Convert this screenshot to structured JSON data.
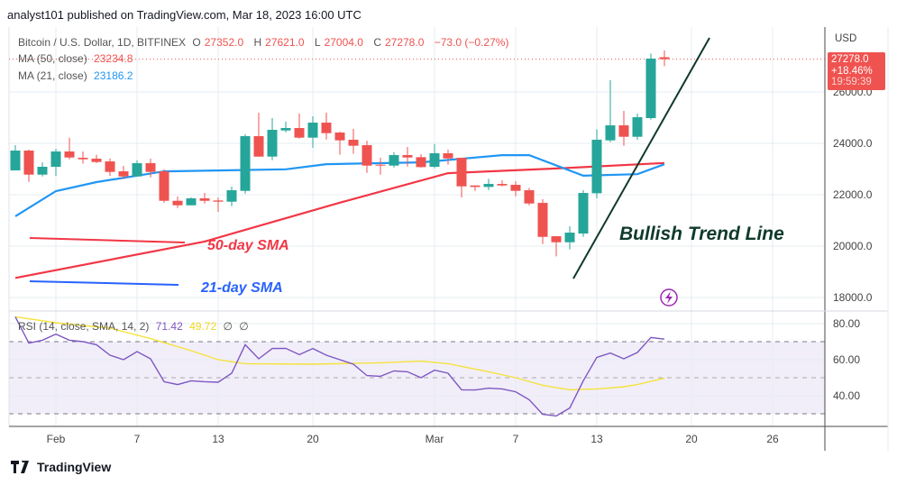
{
  "header": {
    "published": "analyst101 published on TradingView.com, Mar 18, 2023 16:00 UTC"
  },
  "footer": {
    "logo_text": "TradingView"
  },
  "legend": {
    "symbol": "Bitcoin / U.S. Dollar, 1D, BITFINEX",
    "o_label": "O",
    "o": "27352.0",
    "h_label": "H",
    "h": "27621.0",
    "l_label": "L",
    "l": "27004.0",
    "c_label": "C",
    "c": "27278.0",
    "change": "−73.0 (−0.27%)",
    "ma50_label": "MA (50, close)",
    "ma50_value": "23234.8",
    "ma21_label": "MA (21, close)",
    "ma21_value": "23186.2",
    "rsi_label": "RSI (14, close, SMA, 14, 2)",
    "rsi_value": "71.42",
    "rsi_sma_value": "49.72",
    "rsi_na1": "∅",
    "rsi_na2": "∅"
  },
  "price_tag": {
    "price": "27278.0",
    "change_pct": "+18.46%",
    "countdown": "19:59:39"
  },
  "annotations": {
    "sma50": "50-day SMA",
    "sma21": "21-day SMA",
    "trend": "Bullish Trend Line",
    "lightning_icon": "lightning-icon"
  },
  "colors": {
    "up": "#26a69a",
    "down": "#ef5350",
    "ma50": "#f23645",
    "ma21": "#2196f3",
    "rsi": "#7e57c2",
    "rsi_sma": "#f5e23c",
    "trend": "#103a2c",
    "band": "#f1eef9"
  },
  "chart_data": [
    {
      "type": "candlestick",
      "title": "Bitcoin / U.S. Dollar, 1D, BITFINEX",
      "ylabel": "USD",
      "ylim": [
        17473,
        28527
      ],
      "yticks": [
        "18000.0",
        "20000.0",
        "22000.0",
        "24000.0",
        "26000.0"
      ],
      "xticks": [
        {
          "date": "2023-02-01",
          "label": "Feb"
        },
        {
          "date": "2023-02-07",
          "label": "7"
        },
        {
          "date": "2023-02-13",
          "label": "13"
        },
        {
          "date": "2023-02-20",
          "label": "20"
        },
        {
          "date": "2023-03-01",
          "label": "Mar"
        },
        {
          "date": "2023-03-07",
          "label": "7"
        },
        {
          "date": "2023-03-13",
          "label": "13"
        },
        {
          "date": "2023-03-20",
          "label": "20"
        },
        {
          "date": "2023-03-26",
          "label": "26"
        }
      ],
      "start_date": "2023-01-29",
      "ohlc": [
        [
          22946,
          23929,
          22946,
          23718
        ],
        [
          23718,
          23753,
          22502,
          22782
        ],
        [
          22782,
          23262,
          22712,
          23087
        ],
        [
          23087,
          23789,
          22735,
          23683
        ],
        [
          23683,
          24221,
          23379,
          23449
        ],
        [
          23437,
          23683,
          23204,
          23379
        ],
        [
          23402,
          23555,
          23227,
          23274
        ],
        [
          23297,
          23414,
          22735,
          22888
        ],
        [
          22911,
          23122,
          22607,
          22712
        ],
        [
          22712,
          23332,
          22712,
          23227
        ],
        [
          23227,
          23402,
          22677,
          22888
        ],
        [
          22911,
          22993,
          21694,
          21764
        ],
        [
          21764,
          21928,
          21484,
          21589
        ],
        [
          21589,
          21893,
          21589,
          21858
        ],
        [
          21858,
          22069,
          21659,
          21764
        ],
        [
          21776,
          21893,
          21332,
          21729
        ],
        [
          21729,
          22314,
          21554,
          22174
        ],
        [
          22150,
          24350,
          22045,
          24280
        ],
        [
          24280,
          25193,
          23484,
          23484
        ],
        [
          23484,
          24982,
          23344,
          24526
        ],
        [
          24502,
          24842,
          24432,
          24596
        ],
        [
          24596,
          25157,
          24186,
          24221
        ],
        [
          24221,
          25052,
          23824,
          24806
        ],
        [
          24806,
          25193,
          24151,
          24397
        ],
        [
          24420,
          24455,
          23555,
          24116
        ],
        [
          24140,
          24561,
          23590,
          23906
        ],
        [
          23929,
          24104,
          22853,
          23133
        ],
        [
          23168,
          23437,
          22782,
          23145
        ],
        [
          23133,
          23648,
          23063,
          23543
        ],
        [
          23543,
          23859,
          23098,
          23449
        ],
        [
          23461,
          23578,
          23052,
          23075
        ],
        [
          23087,
          23964,
          23028,
          23613
        ],
        [
          23613,
          23753,
          23168,
          23414
        ],
        [
          23437,
          23437,
          21893,
          22326
        ],
        [
          22361,
          22361,
          22151,
          22303
        ],
        [
          22303,
          22619,
          22186,
          22420
        ],
        [
          22420,
          22560,
          22326,
          22361
        ],
        [
          22385,
          22525,
          21940,
          22151
        ],
        [
          22174,
          22268,
          21589,
          21659
        ],
        [
          21682,
          21823,
          20080,
          20360
        ],
        [
          20384,
          20384,
          19600,
          20150
        ],
        [
          20150,
          20770,
          19869,
          20524
        ],
        [
          20489,
          22174,
          20360,
          22069
        ],
        [
          22057,
          24549,
          21858,
          24140
        ],
        [
          24116,
          26456,
          24046,
          24701
        ],
        [
          24701,
          25263,
          23905,
          24256
        ],
        [
          24256,
          25157,
          24140,
          25017
        ],
        [
          24982,
          27497,
          24923,
          27298
        ],
        [
          27352,
          27621,
          27004,
          27278
        ]
      ],
      "series": [
        {
          "name": "MA (50, close)",
          "points": [
            [
              "2023-01-29",
              18760
            ],
            [
              "2023-02-12",
              20180
            ],
            [
              "2023-02-22",
              21690
            ],
            [
              "2023-03-02",
              22840
            ],
            [
              "2023-03-10",
              23020
            ],
            [
              "2023-03-18",
              23234.8
            ]
          ]
        },
        {
          "name": "MA (21, close)",
          "points": [
            [
              "2023-01-29",
              21160
            ],
            [
              "2023-02-01",
              22140
            ],
            [
              "2023-02-04",
              22490
            ],
            [
              "2023-02-09",
              22910
            ],
            [
              "2023-02-18",
              22990
            ],
            [
              "2023-02-21",
              23190
            ],
            [
              "2023-02-28",
              23260
            ],
            [
              "2023-03-06",
              23540
            ],
            [
              "2023-03-08",
              23540
            ],
            [
              "2023-03-12",
              22740
            ],
            [
              "2023-03-16",
              22800
            ],
            [
              "2023-03-18",
              23186.2
            ]
          ]
        }
      ]
    },
    {
      "type": "line",
      "title": "RSI (14, close, SMA, 14, 2)",
      "ylim": [
        23,
        87
      ],
      "yticks": [
        "80.00",
        "60.00",
        "40.00"
      ],
      "bands": [
        70,
        50,
        30
      ],
      "start_date": "2023-01-29",
      "series": [
        {
          "name": "RSI",
          "values": [
            83.8,
            69.2,
            70.8,
            74.2,
            70.8,
            70,
            68.3,
            62.5,
            60,
            64.5,
            60.5,
            47.8,
            46.2,
            48.3,
            47.8,
            47.5,
            52.5,
            68.3,
            60.5,
            66.2,
            66.3,
            62.8,
            66.2,
            62.5,
            60,
            57.5,
            51.2,
            50.8,
            53.8,
            53.3,
            50,
            54.2,
            52.5,
            43.3,
            43.2,
            44.2,
            43.8,
            42.2,
            37.8,
            29.7,
            28.8,
            33.2,
            48.3,
            61.3,
            63.7,
            60.5,
            64,
            72.3,
            71.42
          ]
        },
        {
          "name": "RSI-based MA",
          "points": [
            [
              "2023-01-29",
              83.8
            ],
            [
              "2023-02-01",
              80.5
            ],
            [
              "2023-02-05",
              77.5
            ],
            [
              "2023-02-08",
              71.7
            ],
            [
              "2023-02-11",
              65
            ],
            [
              "2023-02-13",
              60
            ],
            [
              "2023-02-15",
              57.8
            ],
            [
              "2023-02-20",
              57.5
            ],
            [
              "2023-02-25",
              58.3
            ],
            [
              "2023-02-28",
              59.2
            ],
            [
              "2023-03-02",
              57.8
            ],
            [
              "2023-03-05",
              53.3
            ],
            [
              "2023-03-07",
              50
            ],
            [
              "2023-03-09",
              45.8
            ],
            [
              "2023-03-11",
              43.3
            ],
            [
              "2023-03-13",
              43.8
            ],
            [
              "2023-03-15",
              45
            ],
            [
              "2023-03-16",
              46.2
            ],
            [
              "2023-03-18",
              49.72
            ]
          ]
        }
      ]
    }
  ]
}
